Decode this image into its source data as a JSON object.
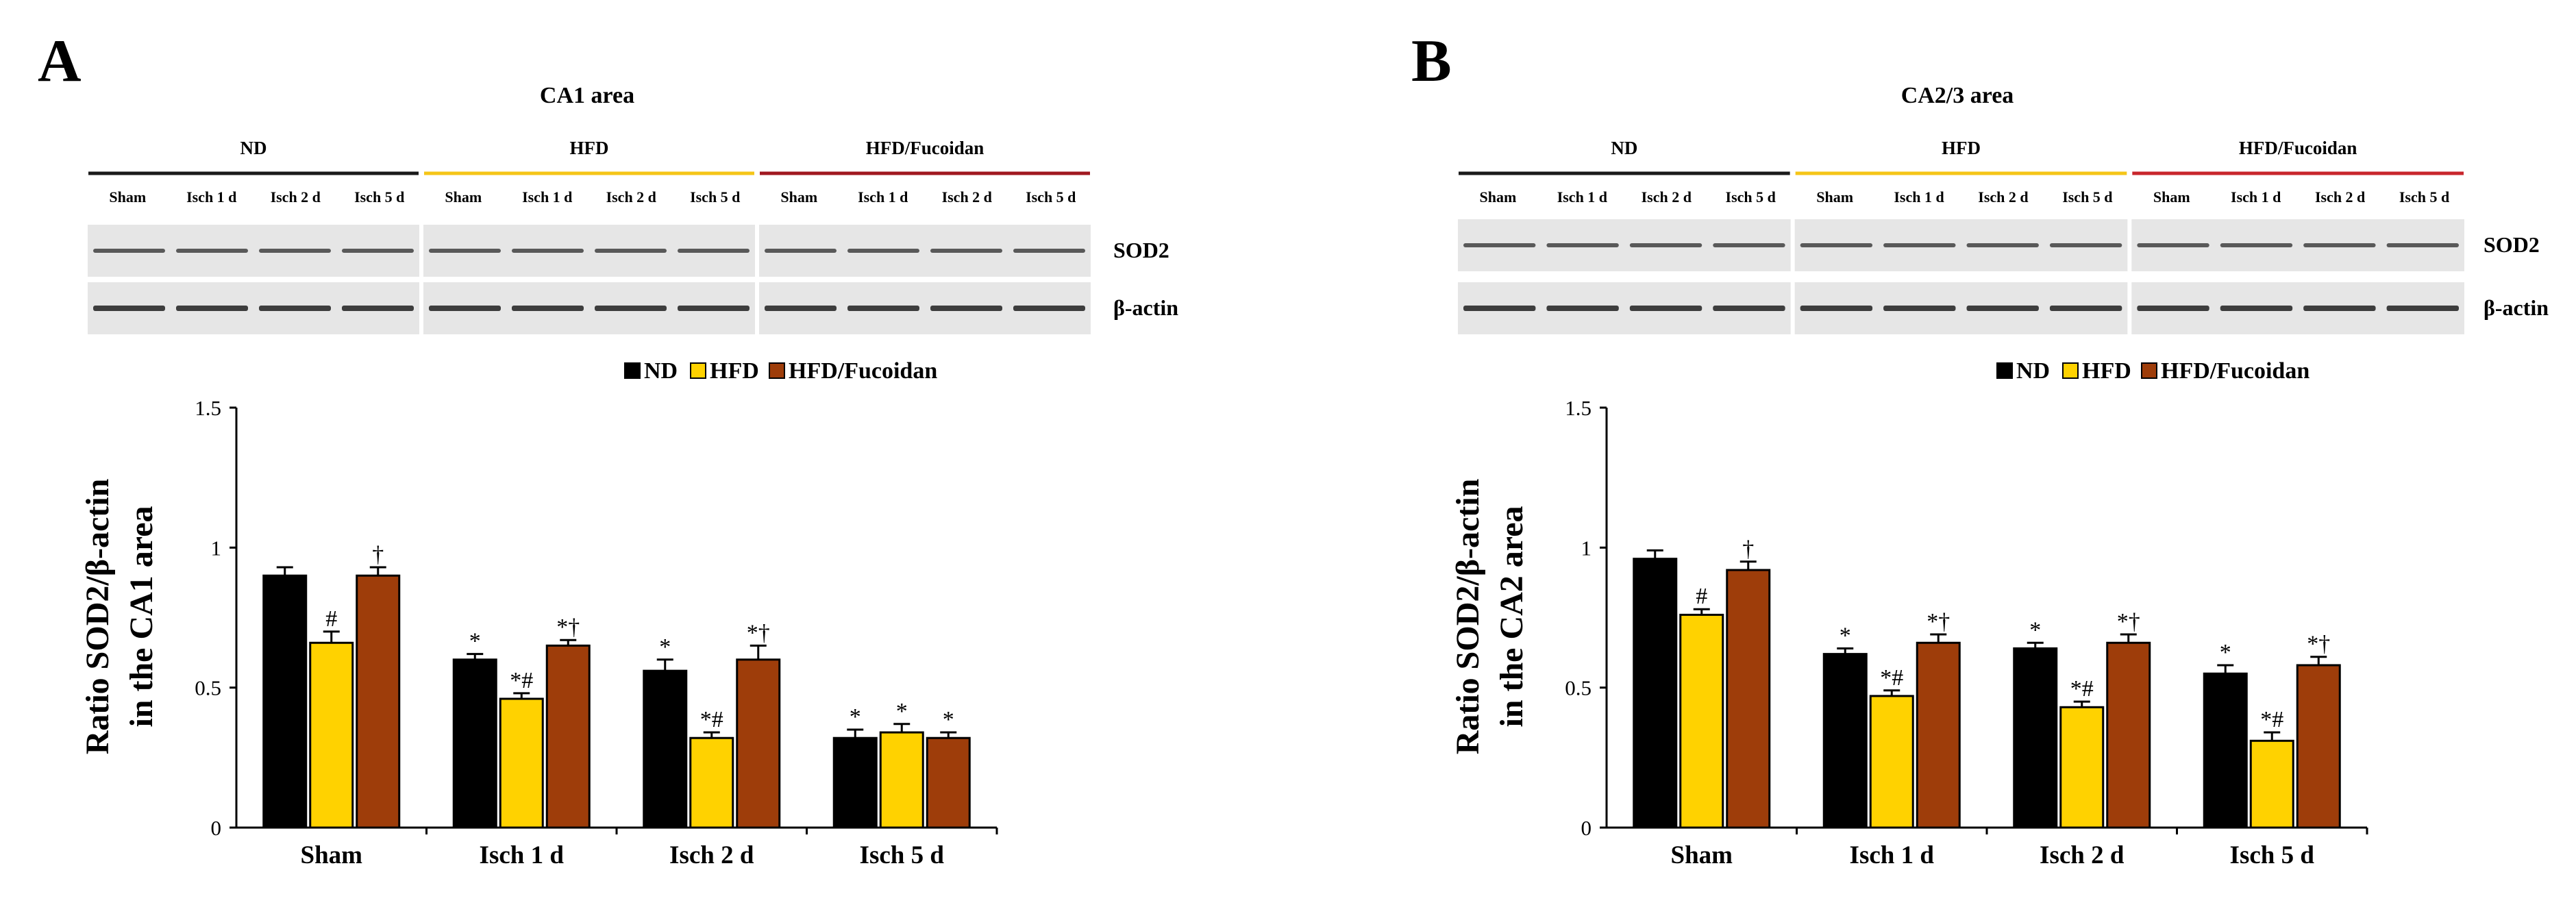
{
  "colors": {
    "ND": "#000000",
    "HFD": "#ffd200",
    "HFD/Fucoidan": "#9e3d0a",
    "blot_bg": "#e6e6e6",
    "band": "#2a2a2a"
  },
  "lanes": [
    "Sham",
    "Isch 1 d",
    "Isch 2 d",
    "Isch 5 d"
  ],
  "blot_labels": [
    "SOD2",
    "β-actin"
  ],
  "panels": [
    {
      "letter": "A",
      "area_title": "CA1 area",
      "groups": [
        {
          "name": "ND",
          "color": "#1a1a1a"
        },
        {
          "name": "HFD",
          "color": "#f5c518"
        },
        {
          "name": "HFD/Fucoidan",
          "color": "#a01820"
        }
      ]
    },
    {
      "letter": "B",
      "area_title": "CA2/3 area",
      "groups": [
        {
          "name": "ND",
          "color": "#1a1a1a"
        },
        {
          "name": "HFD",
          "color": "#f5c518"
        },
        {
          "name": "HFD/Fucoidan",
          "color": "#c8262c"
        }
      ]
    }
  ],
  "chart_data": [
    {
      "type": "bar",
      "panel": "A",
      "title": "",
      "ylabel_lines": [
        "Ratio SOD2/β-actin",
        "in the CA1 area"
      ],
      "xlabel": "",
      "ylim": [
        0,
        1.5
      ],
      "yticks": [
        "0",
        "0.5",
        "1",
        "1.5"
      ],
      "ytick_values": [
        0,
        0.5,
        1,
        1.5
      ],
      "categories": [
        "Sham",
        "Isch 1 d",
        "Isch 2 d",
        "Isch 5 d"
      ],
      "legend": [
        "ND",
        "HFD",
        "HFD/Fucoidan"
      ],
      "series": [
        {
          "name": "ND",
          "values": [
            0.9,
            0.6,
            0.56,
            0.32
          ],
          "errors": [
            0.03,
            0.02,
            0.04,
            0.03
          ],
          "marks": [
            "",
            "*",
            "*",
            "*"
          ]
        },
        {
          "name": "HFD",
          "values": [
            0.66,
            0.46,
            0.32,
            0.34
          ],
          "errors": [
            0.04,
            0.02,
            0.02,
            0.03
          ],
          "marks": [
            "#",
            "*#",
            "*#",
            "*"
          ]
        },
        {
          "name": "HFD/Fucoidan",
          "values": [
            0.9,
            0.65,
            0.6,
            0.32
          ],
          "errors": [
            0.03,
            0.02,
            0.05,
            0.02
          ],
          "marks": [
            "†",
            "*†",
            "*†",
            "*"
          ]
        }
      ]
    },
    {
      "type": "bar",
      "panel": "B",
      "title": "",
      "ylabel_lines": [
        "Ratio SOD2/β-actin",
        "in the CA2 area"
      ],
      "xlabel": "",
      "ylim": [
        0,
        1.5
      ],
      "yticks": [
        "0",
        "0.5",
        "1",
        "1.5"
      ],
      "ytick_values": [
        0,
        0.5,
        1,
        1.5
      ],
      "categories": [
        "Sham",
        "Isch 1 d",
        "Isch 2 d",
        "Isch 5 d"
      ],
      "legend": [
        "ND",
        "HFD",
        "HFD/Fucoidan"
      ],
      "series": [
        {
          "name": "ND",
          "values": [
            0.96,
            0.62,
            0.64,
            0.55
          ],
          "errors": [
            0.03,
            0.02,
            0.02,
            0.03
          ],
          "marks": [
            "",
            "*",
            "*",
            "*"
          ]
        },
        {
          "name": "HFD",
          "values": [
            0.76,
            0.47,
            0.43,
            0.31
          ],
          "errors": [
            0.02,
            0.02,
            0.02,
            0.03
          ],
          "marks": [
            "#",
            "*#",
            "*#",
            "*#"
          ]
        },
        {
          "name": "HFD/Fucoidan",
          "values": [
            0.92,
            0.66,
            0.66,
            0.58
          ],
          "errors": [
            0.03,
            0.03,
            0.03,
            0.03
          ],
          "marks": [
            "†",
            "*†",
            "*†",
            "*†"
          ]
        }
      ]
    }
  ]
}
